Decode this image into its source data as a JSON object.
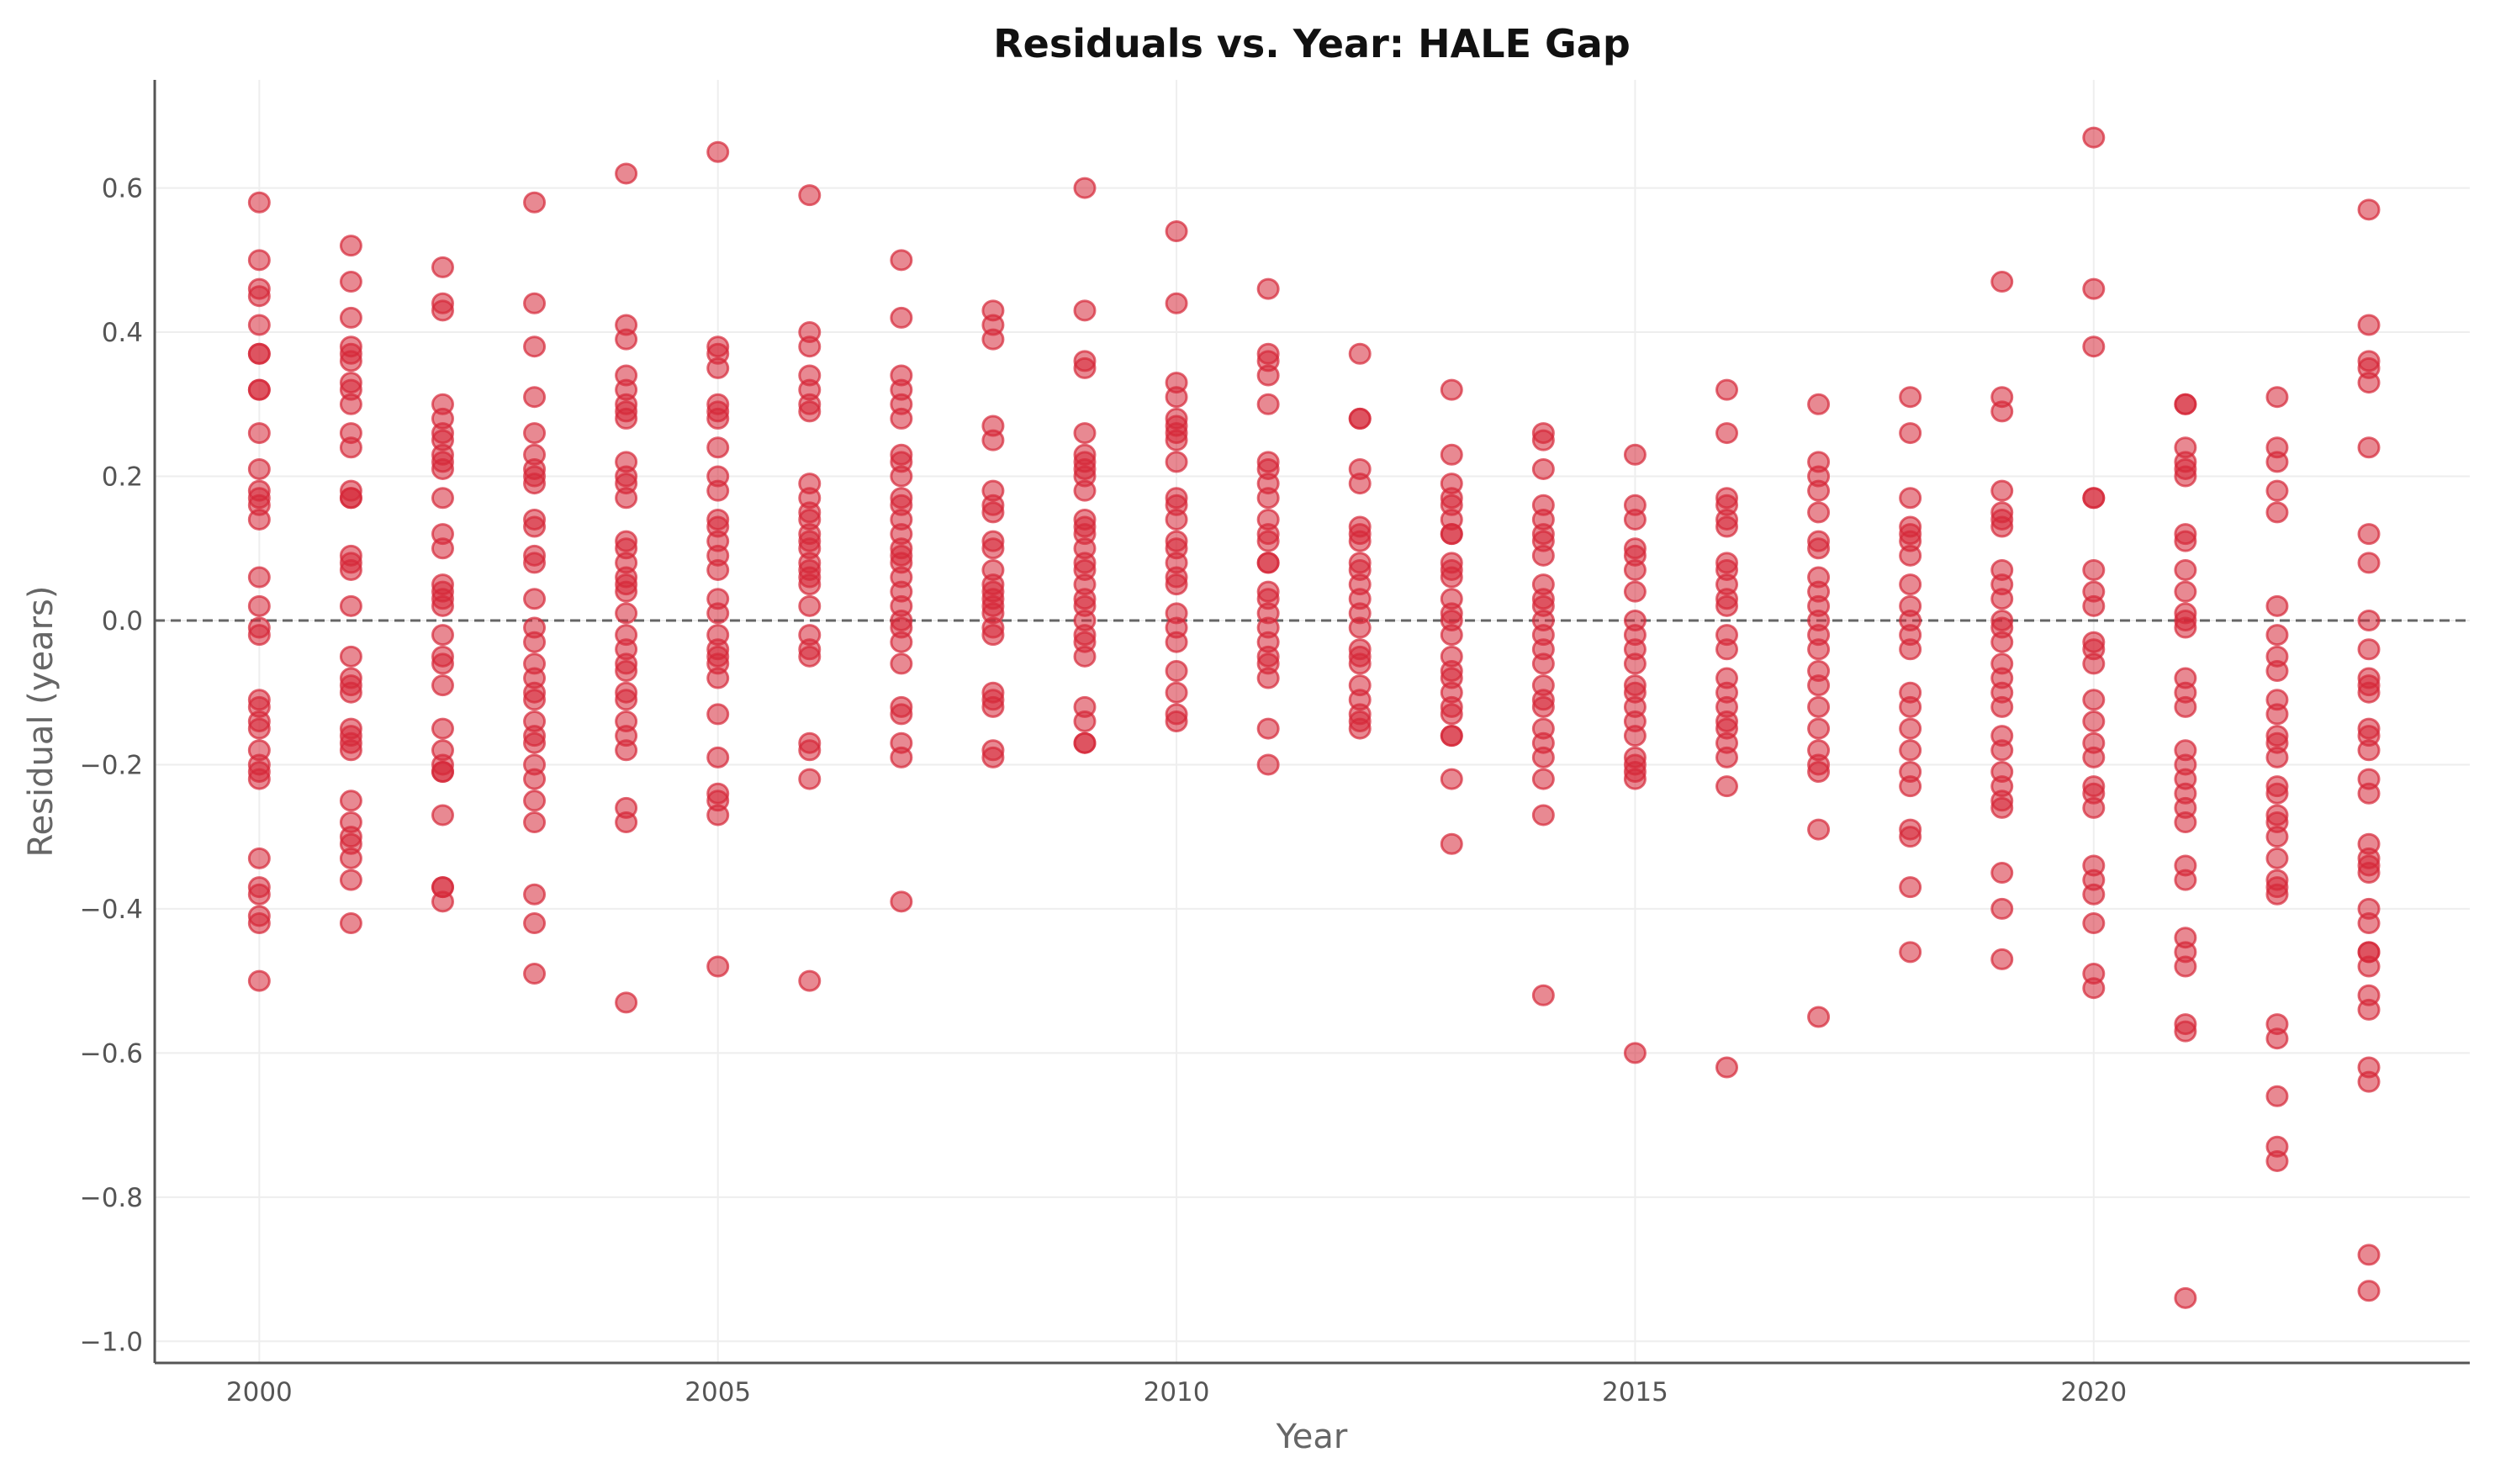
{
  "chart_data": {
    "type": "scatter",
    "title": "Residuals vs. Year: HALE Gap",
    "xlabel": "Year",
    "ylabel": "Residual (years)",
    "xlim": [
      1998.86,
      2024.1
    ],
    "ylim": [
      -1.03,
      0.75
    ],
    "xticks": [
      "2000",
      "2005",
      "2010",
      "2015",
      "2020"
    ],
    "yticks": [
      "0.6",
      "0.4",
      "0.2",
      "0.0",
      "−0.2",
      "−0.4",
      "−0.6",
      "−0.8",
      "−1.0"
    ],
    "grid": true,
    "reference_line": {
      "y": 0,
      "style": "dashed",
      "color": "#666666"
    },
    "marker_color": "#d62839",
    "points": [
      {
        "x": 2000,
        "y": [
          0.58,
          0.5,
          0.46,
          0.45,
          0.41,
          0.37,
          0.37,
          0.32,
          0.32,
          0.26,
          0.21,
          0.18,
          0.17,
          0.16,
          0.14,
          0.06,
          0.02,
          -0.01,
          -0.02,
          -0.11,
          -0.12,
          -0.14,
          -0.15,
          -0.18,
          -0.2,
          -0.21,
          -0.22,
          -0.33,
          -0.37,
          -0.38,
          -0.41,
          -0.42,
          -0.5
        ]
      },
      {
        "x": 2001,
        "y": [
          0.52,
          0.47,
          0.42,
          0.38,
          0.37,
          0.36,
          0.33,
          0.32,
          0.3,
          0.26,
          0.24,
          0.18,
          0.17,
          0.17,
          0.09,
          0.08,
          0.07,
          0.02,
          -0.05,
          -0.08,
          -0.09,
          -0.1,
          -0.15,
          -0.16,
          -0.17,
          -0.18,
          -0.25,
          -0.28,
          -0.3,
          -0.31,
          -0.33,
          -0.36,
          -0.42
        ]
      },
      {
        "x": 2002,
        "y": [
          0.49,
          0.44,
          0.43,
          0.3,
          0.28,
          0.26,
          0.25,
          0.23,
          0.22,
          0.21,
          0.17,
          0.12,
          0.1,
          0.05,
          0.04,
          0.03,
          0.02,
          -0.02,
          -0.05,
          -0.06,
          -0.09,
          -0.15,
          -0.18,
          -0.2,
          -0.21,
          -0.21,
          -0.27,
          -0.37,
          -0.37,
          -0.39
        ]
      },
      {
        "x": 2003,
        "y": [
          0.58,
          0.44,
          0.38,
          0.31,
          0.26,
          0.23,
          0.21,
          0.2,
          0.19,
          0.14,
          0.13,
          0.09,
          0.08,
          0.03,
          -0.01,
          -0.03,
          -0.06,
          -0.08,
          -0.1,
          -0.11,
          -0.14,
          -0.16,
          -0.17,
          -0.2,
          -0.22,
          -0.25,
          -0.28,
          -0.38,
          -0.42,
          -0.49
        ]
      },
      {
        "x": 2004,
        "y": [
          0.62,
          0.41,
          0.39,
          0.34,
          0.32,
          0.3,
          0.29,
          0.28,
          0.22,
          0.2,
          0.19,
          0.17,
          0.11,
          0.1,
          0.08,
          0.06,
          0.05,
          0.04,
          0.01,
          -0.02,
          -0.04,
          -0.06,
          -0.07,
          -0.1,
          -0.11,
          -0.14,
          -0.16,
          -0.18,
          -0.26,
          -0.28,
          -0.53
        ]
      },
      {
        "x": 2005,
        "y": [
          0.65,
          0.38,
          0.37,
          0.35,
          0.3,
          0.29,
          0.28,
          0.24,
          0.2,
          0.18,
          0.14,
          0.13,
          0.11,
          0.09,
          0.07,
          0.03,
          0.01,
          -0.02,
          -0.04,
          -0.05,
          -0.06,
          -0.08,
          -0.13,
          -0.19,
          -0.24,
          -0.25,
          -0.27,
          -0.48
        ]
      },
      {
        "x": 2006,
        "y": [
          0.59,
          0.4,
          0.38,
          0.34,
          0.32,
          0.3,
          0.29,
          0.19,
          0.17,
          0.15,
          0.14,
          0.12,
          0.11,
          0.1,
          0.08,
          0.07,
          0.06,
          0.05,
          0.02,
          -0.02,
          -0.04,
          -0.05,
          -0.17,
          -0.18,
          -0.22,
          -0.5
        ]
      },
      {
        "x": 2007,
        "y": [
          0.5,
          0.42,
          0.34,
          0.32,
          0.3,
          0.28,
          0.23,
          0.22,
          0.2,
          0.17,
          0.16,
          0.14,
          0.12,
          0.1,
          0.09,
          0.08,
          0.06,
          0.04,
          0.02,
          0.0,
          -0.01,
          -0.03,
          -0.06,
          -0.12,
          -0.13,
          -0.17,
          -0.19,
          -0.39
        ]
      },
      {
        "x": 2008,
        "y": [
          0.43,
          0.41,
          0.39,
          0.27,
          0.25,
          0.18,
          0.16,
          0.15,
          0.11,
          0.1,
          0.07,
          0.05,
          0.04,
          0.03,
          0.02,
          0.01,
          -0.01,
          -0.02,
          -0.1,
          -0.11,
          -0.12,
          -0.18,
          -0.19
        ]
      },
      {
        "x": 2009,
        "y": [
          0.6,
          0.43,
          0.36,
          0.35,
          0.26,
          0.23,
          0.22,
          0.21,
          0.2,
          0.18,
          0.14,
          0.13,
          0.12,
          0.1,
          0.08,
          0.07,
          0.05,
          0.03,
          0.02,
          0.0,
          -0.02,
          -0.03,
          -0.05,
          -0.12,
          -0.14,
          -0.17,
          -0.17
        ]
      },
      {
        "x": 2010,
        "y": [
          0.54,
          0.44,
          0.33,
          0.31,
          0.28,
          0.27,
          0.26,
          0.25,
          0.22,
          0.17,
          0.16,
          0.14,
          0.11,
          0.1,
          0.08,
          0.06,
          0.05,
          0.01,
          -0.01,
          -0.03,
          -0.07,
          -0.1,
          -0.13,
          -0.14
        ]
      },
      {
        "x": 2011,
        "y": [
          0.46,
          0.37,
          0.36,
          0.34,
          0.3,
          0.22,
          0.21,
          0.19,
          0.17,
          0.14,
          0.12,
          0.11,
          0.08,
          0.08,
          0.04,
          0.03,
          0.01,
          -0.01,
          -0.03,
          -0.05,
          -0.06,
          -0.08,
          -0.15,
          -0.2
        ]
      },
      {
        "x": 2012,
        "y": [
          0.37,
          0.28,
          0.28,
          0.21,
          0.19,
          0.13,
          0.12,
          0.11,
          0.08,
          0.07,
          0.05,
          0.03,
          0.01,
          -0.01,
          -0.04,
          -0.05,
          -0.06,
          -0.09,
          -0.11,
          -0.13,
          -0.14,
          -0.15
        ]
      },
      {
        "x": 2013,
        "y": [
          0.32,
          0.23,
          0.19,
          0.17,
          0.16,
          0.14,
          0.12,
          0.12,
          0.08,
          0.07,
          0.06,
          0.03,
          0.01,
          0.0,
          -0.02,
          -0.05,
          -0.07,
          -0.08,
          -0.1,
          -0.12,
          -0.13,
          -0.16,
          -0.16,
          -0.22,
          -0.31
        ]
      },
      {
        "x": 2014,
        "y": [
          0.26,
          0.25,
          0.21,
          0.16,
          0.14,
          0.12,
          0.11,
          0.09,
          0.05,
          0.03,
          0.02,
          0.0,
          -0.02,
          -0.04,
          -0.06,
          -0.09,
          -0.11,
          -0.12,
          -0.15,
          -0.17,
          -0.19,
          -0.22,
          -0.27,
          -0.52
        ]
      },
      {
        "x": 2015,
        "y": [
          0.23,
          0.16,
          0.14,
          0.1,
          0.09,
          0.07,
          0.04,
          0.0,
          -0.02,
          -0.04,
          -0.06,
          -0.09,
          -0.1,
          -0.12,
          -0.14,
          -0.16,
          -0.19,
          -0.2,
          -0.21,
          -0.22,
          -0.6
        ]
      },
      {
        "x": 2016,
        "y": [
          0.32,
          0.26,
          0.17,
          0.16,
          0.14,
          0.13,
          0.08,
          0.07,
          0.05,
          0.03,
          0.02,
          -0.02,
          -0.04,
          -0.08,
          -0.1,
          -0.12,
          -0.14,
          -0.15,
          -0.17,
          -0.19,
          -0.23,
          -0.62
        ]
      },
      {
        "x": 2017,
        "y": [
          0.3,
          0.22,
          0.2,
          0.18,
          0.15,
          0.11,
          0.1,
          0.06,
          0.04,
          0.02,
          0.0,
          -0.02,
          -0.04,
          -0.07,
          -0.09,
          -0.12,
          -0.15,
          -0.18,
          -0.2,
          -0.21,
          -0.29,
          -0.55
        ]
      },
      {
        "x": 2018,
        "y": [
          0.31,
          0.26,
          0.17,
          0.13,
          0.12,
          0.11,
          0.09,
          0.05,
          0.02,
          0.0,
          -0.02,
          -0.04,
          -0.1,
          -0.12,
          -0.15,
          -0.18,
          -0.21,
          -0.23,
          -0.29,
          -0.3,
          -0.37,
          -0.46
        ]
      },
      {
        "x": 2019,
        "y": [
          0.47,
          0.31,
          0.29,
          0.18,
          0.15,
          0.14,
          0.13,
          0.07,
          0.05,
          0.03,
          0.0,
          -0.01,
          -0.03,
          -0.06,
          -0.08,
          -0.1,
          -0.12,
          -0.16,
          -0.18,
          -0.21,
          -0.23,
          -0.25,
          -0.26,
          -0.35,
          -0.4,
          -0.47
        ]
      },
      {
        "x": 2020,
        "y": [
          0.67,
          0.46,
          0.38,
          0.17,
          0.17,
          0.07,
          0.04,
          0.02,
          -0.03,
          -0.04,
          -0.06,
          -0.11,
          -0.14,
          -0.17,
          -0.19,
          -0.23,
          -0.24,
          -0.26,
          -0.34,
          -0.36,
          -0.38,
          -0.42,
          -0.49,
          -0.51
        ]
      },
      {
        "x": 2021,
        "y": [
          0.3,
          0.3,
          0.24,
          0.22,
          0.21,
          0.2,
          0.12,
          0.11,
          0.07,
          0.04,
          0.01,
          0.0,
          -0.01,
          -0.08,
          -0.1,
          -0.12,
          -0.18,
          -0.2,
          -0.22,
          -0.24,
          -0.26,
          -0.28,
          -0.34,
          -0.36,
          -0.44,
          -0.46,
          -0.48,
          -0.56,
          -0.57,
          -0.94
        ]
      },
      {
        "x": 2022,
        "y": [
          0.31,
          0.24,
          0.22,
          0.18,
          0.15,
          0.02,
          -0.02,
          -0.05,
          -0.07,
          -0.11,
          -0.13,
          -0.16,
          -0.17,
          -0.19,
          -0.23,
          -0.24,
          -0.27,
          -0.28,
          -0.3,
          -0.33,
          -0.36,
          -0.37,
          -0.38,
          -0.56,
          -0.58,
          -0.66,
          -0.73,
          -0.75
        ]
      },
      {
        "x": 2023,
        "y": [
          0.57,
          0.41,
          0.36,
          0.35,
          0.33,
          0.24,
          0.12,
          0.08,
          0.0,
          -0.04,
          -0.08,
          -0.09,
          -0.1,
          -0.15,
          -0.16,
          -0.18,
          -0.22,
          -0.24,
          -0.31,
          -0.33,
          -0.34,
          -0.35,
          -0.4,
          -0.42,
          -0.46,
          -0.46,
          -0.48,
          -0.52,
          -0.54,
          -0.62,
          -0.64,
          -0.88,
          -0.93
        ]
      }
    ]
  }
}
